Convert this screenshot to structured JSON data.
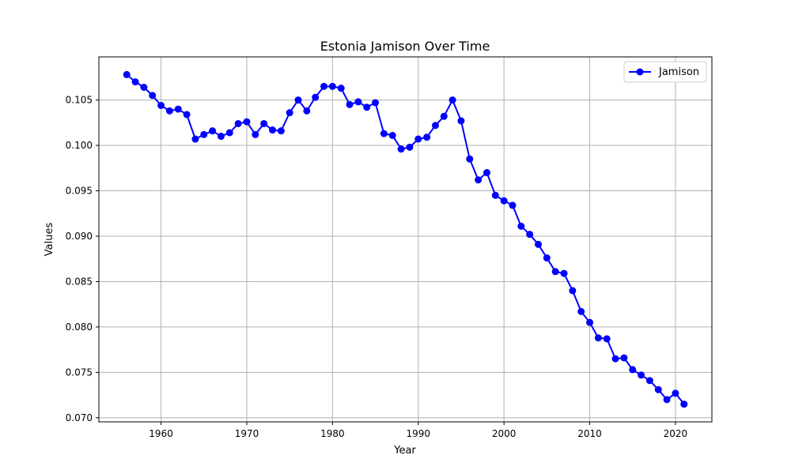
{
  "chart_data": {
    "type": "line",
    "title": "Estonia Jamison Over Time",
    "xlabel": "Year",
    "ylabel": "Values",
    "xlim": [
      1952.75,
      2024.25
    ],
    "ylim": [
      0.06955,
      0.10975
    ],
    "xticks": [
      1960,
      1970,
      1980,
      1990,
      2000,
      2010,
      2020
    ],
    "yticks": [
      0.07,
      0.075,
      0.08,
      0.085,
      0.09,
      0.095,
      0.1,
      0.105
    ],
    "ytick_labels": [
      "0.070",
      "0.075",
      "0.080",
      "0.085",
      "0.090",
      "0.095",
      "0.100",
      "0.105"
    ],
    "grid": true,
    "legend_position": "top-right",
    "series": [
      {
        "name": "Jamison",
        "color": "#0000ff",
        "marker": "circle",
        "x": [
          1956,
          1957,
          1958,
          1959,
          1960,
          1961,
          1962,
          1963,
          1964,
          1965,
          1966,
          1967,
          1968,
          1969,
          1970,
          1971,
          1972,
          1973,
          1974,
          1975,
          1976,
          1977,
          1978,
          1979,
          1980,
          1981,
          1982,
          1983,
          1984,
          1985,
          1986,
          1987,
          1988,
          1989,
          1990,
          1991,
          1992,
          1993,
          1994,
          1995,
          1996,
          1997,
          1998,
          1999,
          2000,
          2001,
          2002,
          2003,
          2004,
          2005,
          2006,
          2007,
          2008,
          2009,
          2010,
          2011,
          2012,
          2013,
          2014,
          2015,
          2016,
          2017,
          2018,
          2019,
          2020,
          2021
        ],
        "y": [
          0.1078,
          0.107,
          0.1064,
          0.1055,
          0.1044,
          0.1038,
          0.104,
          0.1034,
          0.1007,
          0.1012,
          0.1016,
          0.101,
          0.1014,
          0.1024,
          0.1026,
          0.1012,
          0.1024,
          0.1017,
          0.1016,
          0.1036,
          0.105,
          0.1038,
          0.1053,
          0.1065,
          0.1065,
          0.1063,
          0.1045,
          0.1048,
          0.1042,
          0.1047,
          0.1013,
          0.1011,
          0.0996,
          0.0998,
          0.1007,
          0.1009,
          0.1022,
          0.1032,
          0.105,
          0.1027,
          0.0985,
          0.0962,
          0.097,
          0.0945,
          0.0939,
          0.0934,
          0.0911,
          0.0902,
          0.0891,
          0.0876,
          0.0861,
          0.0859,
          0.084,
          0.0817,
          0.0805,
          0.0788,
          0.0787,
          0.0765,
          0.0766,
          0.0753,
          0.0747,
          0.0741,
          0.0731,
          0.072,
          0.0727,
          0.0715
        ]
      }
    ]
  }
}
